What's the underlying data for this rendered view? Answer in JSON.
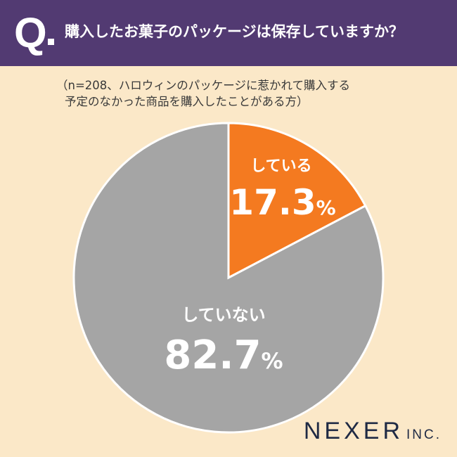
{
  "header": {
    "q_label": "Q",
    "question": "購入したお菓子のパッケージは保存していますか？"
  },
  "note": {
    "line1": "（n=208、ハロウィンのパッケージに惹かれて購入する",
    "line2": "予定のなかった商品を購入したことがある方）"
  },
  "chart_data": {
    "type": "pie",
    "title": "購入したお菓子のパッケージは保存していますか？",
    "slices": [
      {
        "label": "している",
        "value": 17.3,
        "display": "17.3",
        "color": "#f47a20"
      },
      {
        "label": "していない",
        "value": 82.7,
        "display": "82.7",
        "color": "#a5a5a5"
      }
    ],
    "unit": "%"
  },
  "logo": {
    "main": "NEXER",
    "suffix": "INC."
  },
  "colors": {
    "header_bg": "#523a72",
    "background": "#fbe8c8",
    "accent": "#f47a20",
    "gray": "#a5a5a5"
  }
}
